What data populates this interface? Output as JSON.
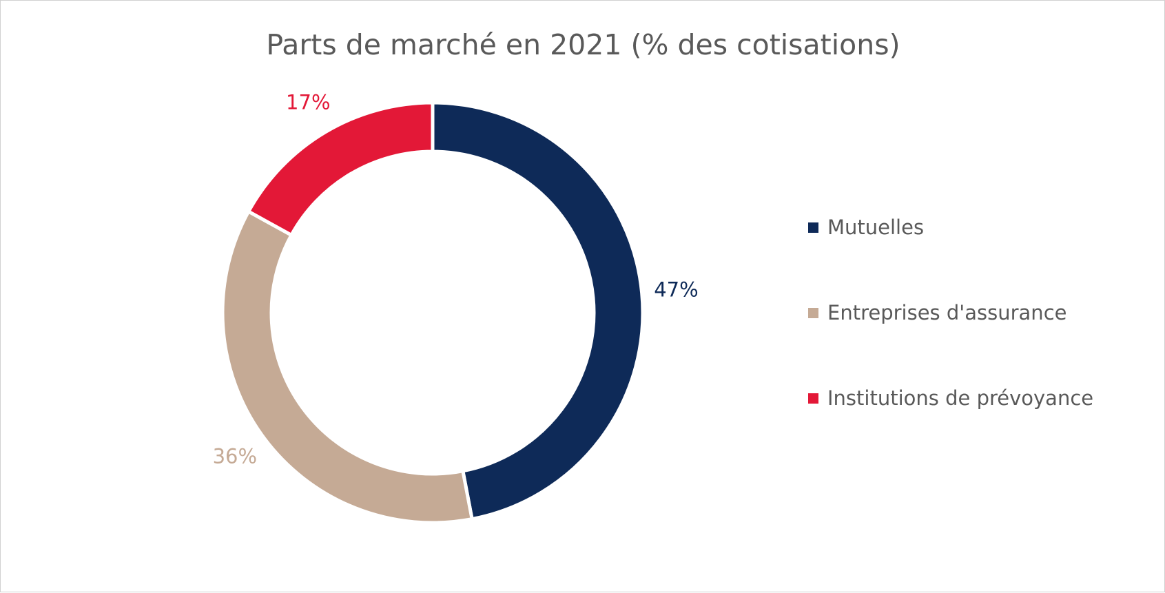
{
  "chart_data": {
    "type": "pie",
    "title": "Parts de marché en 2021 (% des cotisations)",
    "categories": [
      "Mutuelles",
      "Entreprises d'assurance",
      "Institutions de prévoyance"
    ],
    "values": [
      47,
      36,
      17
    ],
    "data_labels": [
      "47%",
      "36%",
      "17%"
    ],
    "colors": [
      "#0e2a58",
      "#c5aa95",
      "#e31837"
    ],
    "donut": true,
    "legend_position": "right"
  }
}
